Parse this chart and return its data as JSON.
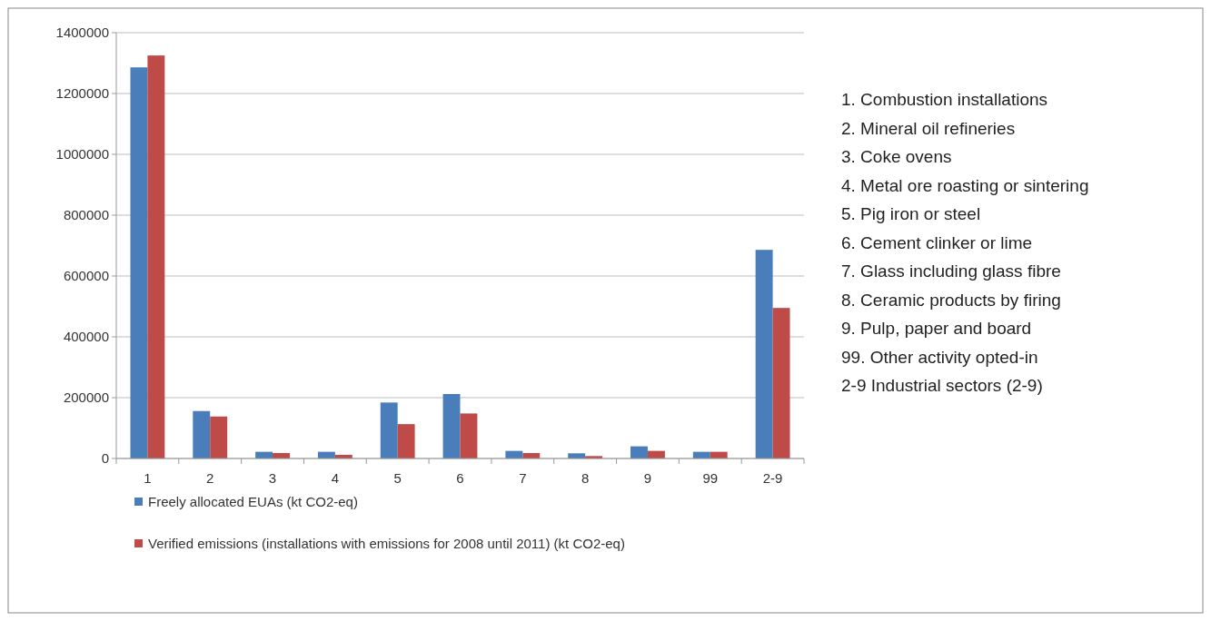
{
  "chart_data": {
    "type": "bar",
    "categories": [
      "1",
      "2",
      "3",
      "4",
      "5",
      "6",
      "7",
      "8",
      "9",
      "99",
      "2-9"
    ],
    "series": [
      {
        "name": "Freely allocated EUAs (kt CO2-eq)",
        "color": "#4a7ebb",
        "values": [
          1286000,
          156000,
          22000,
          22000,
          184000,
          212000,
          25000,
          17000,
          40000,
          22000,
          686000
        ]
      },
      {
        "name": "Verified emissions (installations with emissions for 2008 until 2011) (kt CO2-eq)",
        "color": "#be4b48",
        "values": [
          1325000,
          138000,
          18000,
          12000,
          113000,
          148000,
          18000,
          8000,
          25000,
          22000,
          495000
        ]
      }
    ],
    "ylim": [
      0,
      1400000
    ],
    "yticks": [
      0,
      200000,
      400000,
      600000,
      800000,
      1000000,
      1200000,
      1400000
    ],
    "grid": "y",
    "legend": "bottom",
    "annotations": [
      "1. Combustion installations",
      "2. Mineral oil refineries",
      "3. Coke ovens",
      "4. Metal ore roasting or sintering",
      "5. Pig iron or steel",
      "6. Cement clinker or lime",
      "7. Glass including glass fibre",
      "8. Ceramic products by firing",
      "9. Pulp, paper and board",
      "99. Other activity opted-in",
      "2-9 Industrial sectors (2-9)"
    ]
  }
}
